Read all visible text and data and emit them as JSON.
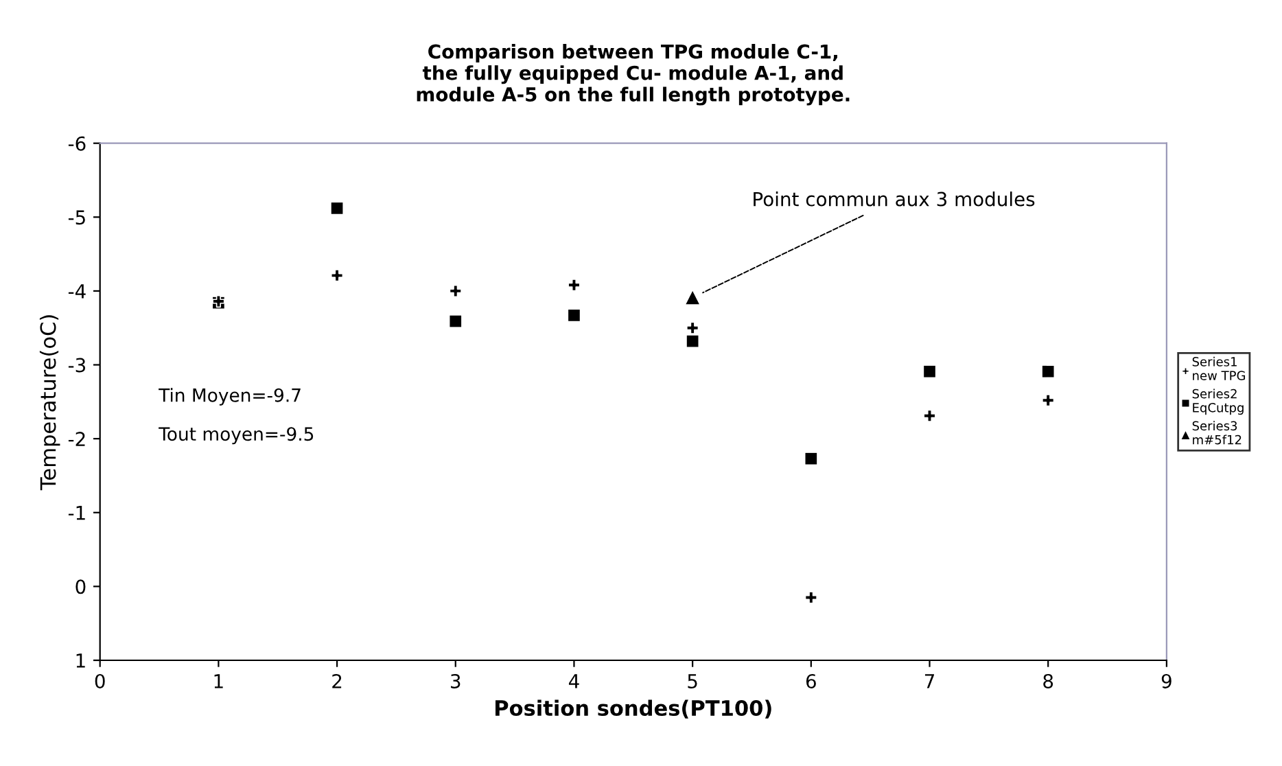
{
  "chart_data": {
    "type": "scatter",
    "title": "Comparison between TPG module C-1,\nthe fully equipped Cu- module A-1, and\nmodule A-5 on the full length prototype.",
    "xlabel": "Position sondes(PT100)",
    "ylabel": "Temperature(oC)",
    "x": [
      1,
      2,
      3,
      4,
      5,
      6,
      7,
      8
    ],
    "series": [
      {
        "name": "Series1\nnew TPG",
        "color": "#000000",
        "marker": "cross",
        "values": [
          -3.86,
          -4.21,
          -4.0,
          -4.08,
          -3.5,
          0.15,
          -2.31,
          -2.52
        ]
      },
      {
        "name": "Series2\nEqCutpg",
        "color": "#000000",
        "marker": "square",
        "values": [
          -3.84,
          -5.12,
          -3.59,
          -3.67,
          -3.32,
          -1.73,
          -2.91,
          -2.91
        ]
      },
      {
        "name": "Series3\nm#5f12",
        "color": "#000000",
        "marker": "triangle",
        "x": [
          5
        ],
        "values": [
          -3.91
        ]
      }
    ],
    "xlim": [
      0,
      9
    ],
    "xticks": [
      0,
      1,
      2,
      3,
      4,
      5,
      6,
      7,
      8,
      9
    ],
    "ylim": [
      1,
      -6
    ],
    "yticks": [
      1,
      0,
      -1,
      -2,
      -3,
      -4,
      -5,
      -6
    ],
    "grid": false,
    "legend": "right",
    "annotations": [
      {
        "text": "Point commun aux 3 modules",
        "x": 5,
        "y": -3.91
      },
      "Tin Moyen=-9.7",
      "Tout moyen=-9.5"
    ]
  }
}
